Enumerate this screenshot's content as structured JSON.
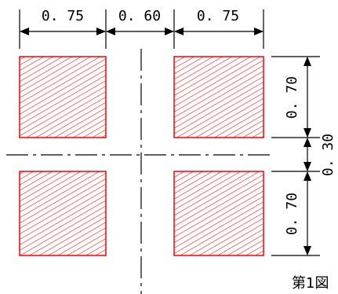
{
  "diagram": {
    "dimensions": {
      "top_left_width": "0. 75",
      "top_gap": "0. 60",
      "top_right_width": "0. 75",
      "right_upper_height": "0. 70",
      "right_gap": "0. 30",
      "right_lower_height": "0. 70"
    },
    "caption": "第1図"
  },
  "colors": {
    "hatch": "#ff0000",
    "line": "#000000"
  }
}
